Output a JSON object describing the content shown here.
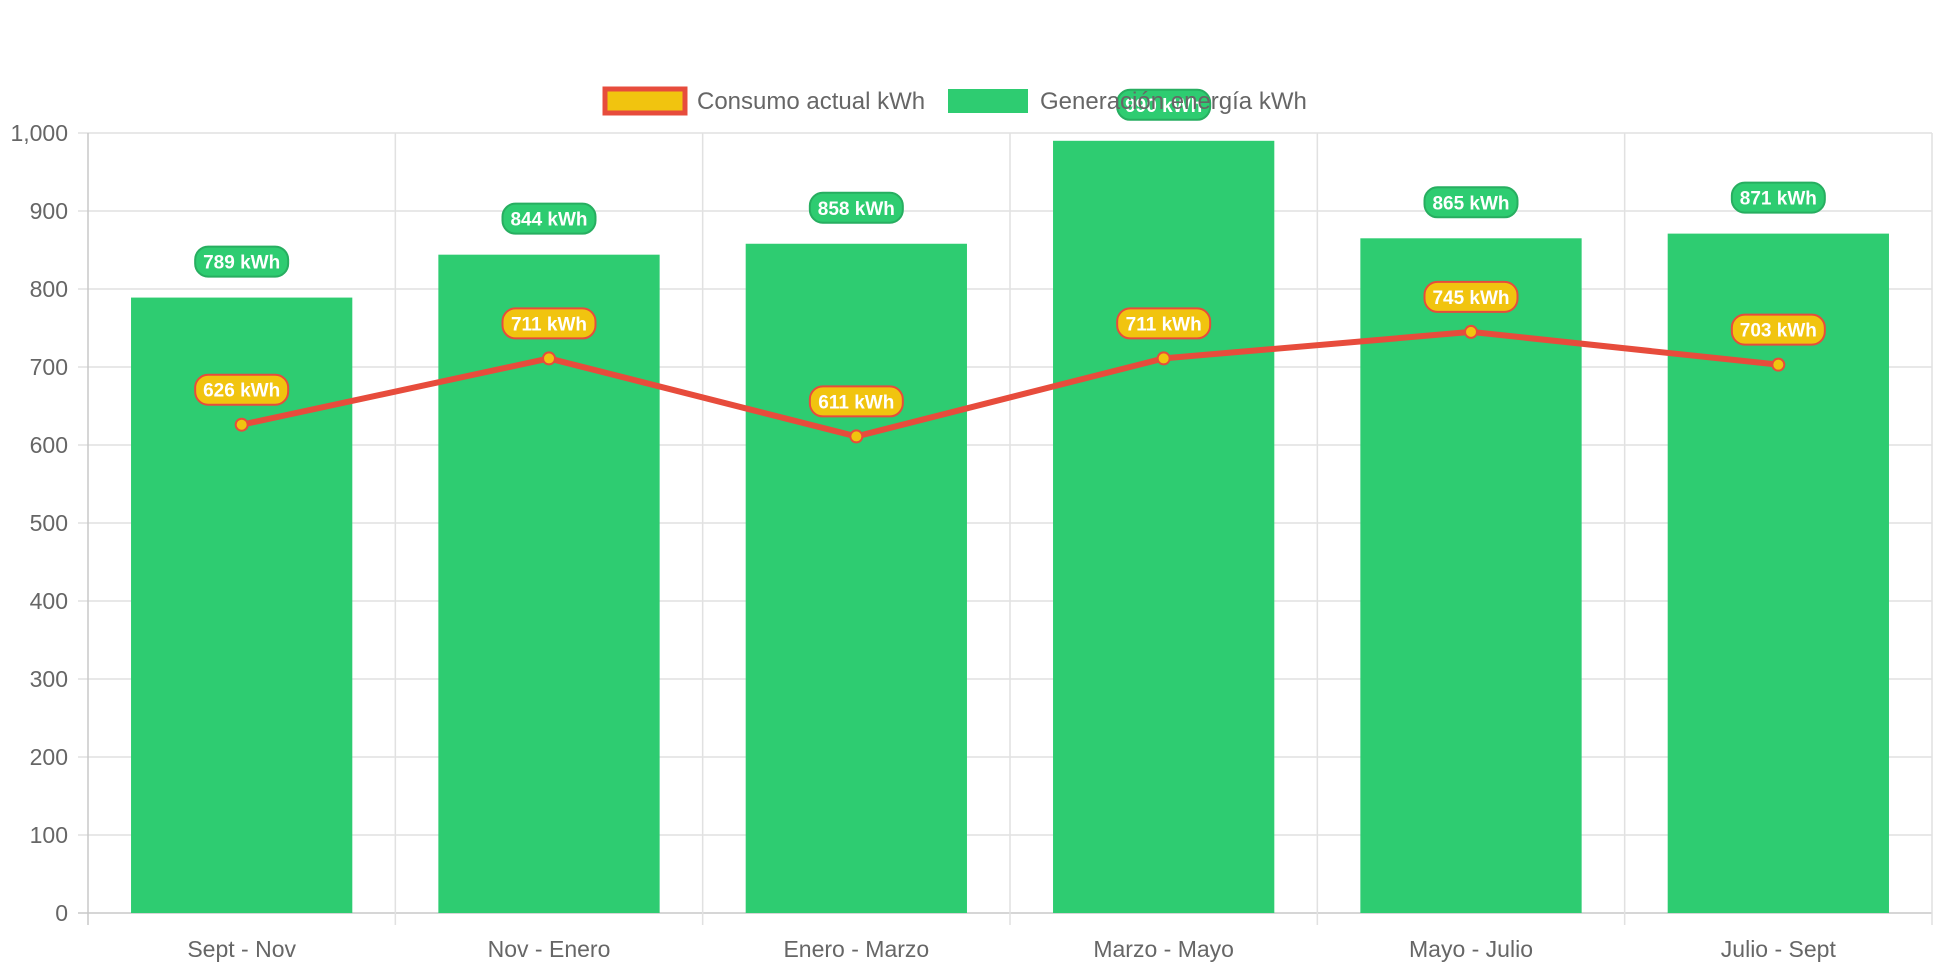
{
  "chart_data": {
    "type": "bar",
    "categories": [
      "Sept - Nov",
      "Nov - Enero",
      "Enero - Marzo",
      "Marzo - Mayo",
      "Mayo - Julio",
      "Julio - Sept"
    ],
    "series": [
      {
        "name": "Generación energía kWh",
        "type": "bar",
        "values": [
          789,
          844,
          858,
          990,
          865,
          871
        ],
        "labels": [
          "789 kWh",
          "844 kWh",
          "858 kWh",
          "990 kWh",
          "865 kWh",
          "871 kWh"
        ],
        "color": "#2ecc71",
        "label_border": "#27ae60"
      },
      {
        "name": "Consumo actual kWh",
        "type": "line",
        "values": [
          626,
          711,
          611,
          711,
          745,
          703
        ],
        "labels": [
          "626 kWh",
          "711 kWh",
          "611 kWh",
          "711 kWh",
          "745 kWh",
          "703 kWh"
        ],
        "color": "#f1c40f",
        "line_color": "#e74c3c"
      }
    ],
    "y_ticks": [
      "0",
      "100",
      "200",
      "300",
      "400",
      "500",
      "600",
      "700",
      "800",
      "900",
      "1,000"
    ],
    "ylim": [
      0,
      1000
    ],
    "grid": true,
    "legend": "top-center"
  }
}
